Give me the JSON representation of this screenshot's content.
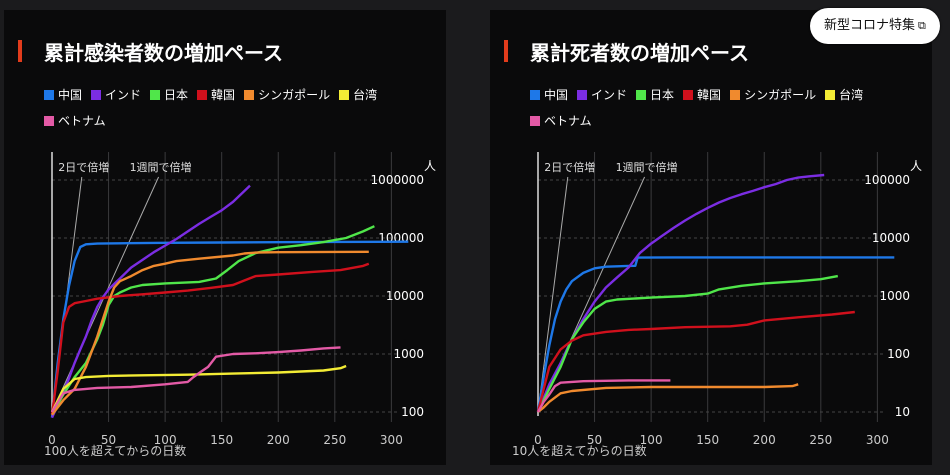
{
  "badge": {
    "label": "新型コロナ特集",
    "icon": "external-link-icon"
  },
  "colors": {
    "中国": "#1e78e8",
    "インド": "#7b2de3",
    "日本": "#50e64a",
    "韓国": "#d0101c",
    "シンガポール": "#f08a2e",
    "台湾": "#f3ec35",
    "ベトナム": "#e35aa6"
  },
  "chart_data": [
    {
      "type": "line",
      "title": "累計感染者数の増加ペース",
      "xlabel": "100人を超えてからの日数",
      "ylabel": "人",
      "xlim": [
        0,
        320
      ],
      "ylim": [
        100,
        1000000
      ],
      "yscale": "log",
      "x_ticks": [
        "0",
        "50",
        "100",
        "150",
        "200",
        "250",
        "300"
      ],
      "y_ticks": [
        "100",
        "1000",
        "10000",
        "100000",
        "1000000"
      ],
      "reference_lines": [
        {
          "label": "2日で倍増",
          "points": [
            [
              0,
              100
            ],
            [
              26,
              1000000
            ]
          ]
        },
        {
          "label": "1週間で倍増",
          "points": [
            [
              0,
              100
            ],
            [
              93,
              1000000
            ]
          ]
        }
      ],
      "series": [
        {
          "name": "中国",
          "points": [
            [
              0,
              80
            ],
            [
              5,
              700
            ],
            [
              10,
              4000
            ],
            [
              15,
              15000
            ],
            [
              20,
              40000
            ],
            [
              25,
              70000
            ],
            [
              30,
              78000
            ],
            [
              40,
              80000
            ],
            [
              60,
              81000
            ],
            [
              100,
              82500
            ],
            [
              150,
              83500
            ],
            [
              200,
              84500
            ],
            [
              250,
              85500
            ],
            [
              315,
              86500
            ]
          ]
        },
        {
          "name": "インド",
          "points": [
            [
              0,
              80
            ],
            [
              5,
              130
            ],
            [
              10,
              220
            ],
            [
              15,
              380
            ],
            [
              20,
              700
            ],
            [
              25,
              1200
            ],
            [
              30,
              2000
            ],
            [
              35,
              3800
            ],
            [
              40,
              6500
            ],
            [
              45,
              9500
            ],
            [
              50,
              13000
            ],
            [
              60,
              20000
            ],
            [
              70,
              31000
            ],
            [
              80,
              42000
            ],
            [
              90,
              57000
            ],
            [
              100,
              74000
            ],
            [
              110,
              96000
            ],
            [
              120,
              130000
            ],
            [
              130,
              175000
            ],
            [
              140,
              230000
            ],
            [
              150,
              300000
            ],
            [
              160,
              420000
            ],
            [
              175,
              800000
            ]
          ]
        },
        {
          "name": "日本",
          "points": [
            [
              0,
              90
            ],
            [
              10,
              200
            ],
            [
              20,
              400
            ],
            [
              30,
              700
            ],
            [
              40,
              1800
            ],
            [
              45,
              3200
            ],
            [
              50,
              7000
            ],
            [
              55,
              10000
            ],
            [
              60,
              11500
            ],
            [
              70,
              14000
            ],
            [
              80,
              15500
            ],
            [
              100,
              16500
            ],
            [
              130,
              17500
            ],
            [
              145,
              20000
            ],
            [
              155,
              28000
            ],
            [
              165,
              40000
            ],
            [
              180,
              55000
            ],
            [
              200,
              68000
            ],
            [
              220,
              75000
            ],
            [
              240,
              85000
            ],
            [
              260,
              100000
            ],
            [
              275,
              130000
            ],
            [
              285,
              160000
            ]
          ]
        },
        {
          "name": "韓国",
          "points": [
            [
              0,
              90
            ],
            [
              5,
              500
            ],
            [
              10,
              3500
            ],
            [
              15,
              6500
            ],
            [
              20,
              7500
            ],
            [
              30,
              8200
            ],
            [
              40,
              9000
            ],
            [
              60,
              10000
            ],
            [
              80,
              10700
            ],
            [
              100,
              11500
            ],
            [
              120,
              12400
            ],
            [
              140,
              13800
            ],
            [
              160,
              15500
            ],
            [
              170,
              18500
            ],
            [
              180,
              22000
            ],
            [
              200,
              23500
            ],
            [
              230,
              26000
            ],
            [
              255,
              28000
            ],
            [
              275,
              33000
            ],
            [
              280,
              36000
            ]
          ]
        },
        {
          "name": "シンガポール",
          "points": [
            [
              0,
              90
            ],
            [
              10,
              160
            ],
            [
              20,
              250
            ],
            [
              30,
              600
            ],
            [
              40,
              2000
            ],
            [
              45,
              4000
            ],
            [
              50,
              8000
            ],
            [
              55,
              14000
            ],
            [
              60,
              18000
            ],
            [
              70,
              22000
            ],
            [
              80,
              28000
            ],
            [
              90,
              33000
            ],
            [
              100,
              36000
            ],
            [
              110,
              40000
            ],
            [
              130,
              44000
            ],
            [
              160,
              50000
            ],
            [
              170,
              54000
            ],
            [
              180,
              56000
            ],
            [
              200,
              57000
            ],
            [
              250,
              57600
            ],
            [
              280,
              57800
            ]
          ]
        },
        {
          "name": "台湾",
          "points": [
            [
              0,
              100
            ],
            [
              10,
              250
            ],
            [
              20,
              370
            ],
            [
              30,
              400
            ],
            [
              50,
              420
            ],
            [
              80,
              430
            ],
            [
              120,
              440
            ],
            [
              160,
              460
            ],
            [
              200,
              480
            ],
            [
              240,
              520
            ],
            [
              255,
              570
            ],
            [
              260,
              620
            ]
          ]
        },
        {
          "name": "ベトナム",
          "points": [
            [
              0,
              100
            ],
            [
              10,
              210
            ],
            [
              20,
              240
            ],
            [
              40,
              260
            ],
            [
              70,
              270
            ],
            [
              100,
              300
            ],
            [
              120,
              330
            ],
            [
              125,
              400
            ],
            [
              132,
              500
            ],
            [
              138,
              600
            ],
            [
              145,
              900
            ],
            [
              160,
              1000
            ],
            [
              180,
              1030
            ],
            [
              200,
              1080
            ],
            [
              220,
              1150
            ],
            [
              240,
              1250
            ],
            [
              255,
              1300
            ]
          ]
        }
      ]
    },
    {
      "type": "line",
      "title": "累計死者数の増加ペース",
      "xlabel": "10人を超えてからの日数",
      "ylabel": "人",
      "xlim": [
        0,
        320
      ],
      "ylim": [
        10,
        100000
      ],
      "yscale": "log",
      "x_ticks": [
        "0",
        "50",
        "100",
        "150",
        "200",
        "250",
        "300"
      ],
      "y_ticks": [
        "10",
        "100",
        "1000",
        "10000",
        "100000"
      ],
      "reference_lines": [
        {
          "label": "2日で倍増",
          "points": [
            [
              0,
              10
            ],
            [
              26,
              100000
            ]
          ]
        },
        {
          "label": "1週間で倍増",
          "points": [
            [
              0,
              10
            ],
            [
              93,
              100000
            ]
          ]
        }
      ],
      "series": [
        {
          "name": "中国",
          "points": [
            [
              0,
              10
            ],
            [
              5,
              40
            ],
            [
              10,
              140
            ],
            [
              15,
              400
            ],
            [
              20,
              800
            ],
            [
              25,
              1300
            ],
            [
              30,
              1800
            ],
            [
              40,
              2500
            ],
            [
              50,
              3000
            ],
            [
              60,
              3200
            ],
            [
              80,
              3300
            ],
            [
              86,
              3320
            ],
            [
              88,
              4600
            ],
            [
              120,
              4630
            ],
            [
              200,
              4634
            ],
            [
              315,
              4634
            ]
          ]
        },
        {
          "name": "インド",
          "points": [
            [
              0,
              10
            ],
            [
              10,
              30
            ],
            [
              20,
              70
            ],
            [
              30,
              180
            ],
            [
              40,
              400
            ],
            [
              50,
              800
            ],
            [
              60,
              1400
            ],
            [
              70,
              2100
            ],
            [
              80,
              3100
            ],
            [
              90,
              5500
            ],
            [
              100,
              8000
            ],
            [
              110,
              11000
            ],
            [
              120,
              15000
            ],
            [
              130,
              20000
            ],
            [
              140,
              26000
            ],
            [
              150,
              33000
            ],
            [
              160,
              41000
            ],
            [
              170,
              49000
            ],
            [
              180,
              57000
            ],
            [
              190,
              65000
            ],
            [
              200,
              75000
            ],
            [
              210,
              85000
            ],
            [
              220,
              100000
            ],
            [
              230,
              110000
            ],
            [
              240,
              116000
            ],
            [
              253,
              122000
            ]
          ]
        },
        {
          "name": "日本",
          "points": [
            [
              0,
              10
            ],
            [
              10,
              25
            ],
            [
              20,
              60
            ],
            [
              30,
              180
            ],
            [
              40,
              350
            ],
            [
              50,
              600
            ],
            [
              60,
              800
            ],
            [
              70,
              870
            ],
            [
              100,
              940
            ],
            [
              130,
              1000
            ],
            [
              150,
              1100
            ],
            [
              160,
              1300
            ],
            [
              180,
              1500
            ],
            [
              200,
              1650
            ],
            [
              230,
              1800
            ],
            [
              250,
              1950
            ],
            [
              265,
              2200
            ]
          ]
        },
        {
          "name": "韓国",
          "points": [
            [
              0,
              10
            ],
            [
              5,
              25
            ],
            [
              10,
              60
            ],
            [
              20,
              120
            ],
            [
              30,
              170
            ],
            [
              40,
              210
            ],
            [
              60,
              240
            ],
            [
              80,
              260
            ],
            [
              100,
              270
            ],
            [
              130,
              290
            ],
            [
              170,
              300
            ],
            [
              185,
              320
            ],
            [
              200,
              380
            ],
            [
              230,
              430
            ],
            [
              260,
              480
            ],
            [
              280,
              530
            ]
          ]
        },
        {
          "name": "シンガポール",
          "points": [
            [
              0,
              10
            ],
            [
              5,
              12
            ],
            [
              10,
              15
            ],
            [
              20,
              21
            ],
            [
              30,
              23
            ],
            [
              60,
              26
            ],
            [
              100,
              27
            ],
            [
              150,
              27
            ],
            [
              200,
              27
            ],
            [
              225,
              28
            ],
            [
              230,
              30
            ]
          ]
        },
        {
          "name": "ベトナム",
          "points": [
            [
              0,
              10
            ],
            [
              5,
              15
            ],
            [
              10,
              20
            ],
            [
              15,
              28
            ],
            [
              20,
              32
            ],
            [
              40,
              34
            ],
            [
              80,
              35
            ],
            [
              117,
              35
            ]
          ]
        }
      ]
    }
  ]
}
